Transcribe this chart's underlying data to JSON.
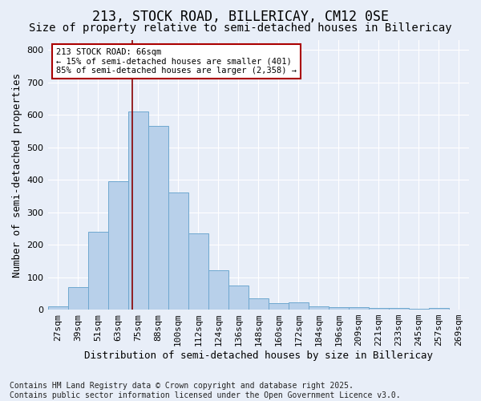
{
  "title1": "213, STOCK ROAD, BILLERICAY, CM12 0SE",
  "title2": "Size of property relative to semi-detached houses in Billericay",
  "xlabel": "Distribution of semi-detached houses by size in Billericay",
  "ylabel": "Number of semi-detached properties",
  "categories": [
    "27sqm",
    "39sqm",
    "51sqm",
    "63sqm",
    "75sqm",
    "88sqm",
    "100sqm",
    "112sqm",
    "124sqm",
    "136sqm",
    "148sqm",
    "160sqm",
    "172sqm",
    "184sqm",
    "196sqm",
    "209sqm",
    "221sqm",
    "233sqm",
    "245sqm",
    "257sqm",
    "269sqm"
  ],
  "values": [
    10,
    70,
    240,
    395,
    610,
    565,
    360,
    235,
    120,
    75,
    35,
    20,
    22,
    10,
    7,
    8,
    6,
    5,
    2,
    5,
    0
  ],
  "bar_color": "#b8d0ea",
  "bar_edge_color": "#6fa8d0",
  "background_color": "#e8eef8",
  "grid_color": "#ffffff",
  "annotation_box_color": "#ffffff",
  "annotation_border_color": "#aa0000",
  "annotation_text1": "213 STOCK ROAD: 66sqm",
  "annotation_text2": "← 15% of semi-detached houses are smaller (401)",
  "annotation_text3": "85% of semi-detached houses are larger (2,358) →",
  "vline_x": 3.7,
  "vline_color": "#880000",
  "ylim": [
    0,
    830
  ],
  "yticks": [
    0,
    100,
    200,
    300,
    400,
    500,
    600,
    700,
    800
  ],
  "footnote1": "Contains HM Land Registry data © Crown copyright and database right 2025.",
  "footnote2": "Contains public sector information licensed under the Open Government Licence v3.0.",
  "title1_fontsize": 12,
  "title2_fontsize": 10,
  "axis_label_fontsize": 9,
  "tick_fontsize": 8,
  "annotation_fontsize": 7.5,
  "footnote_fontsize": 7
}
